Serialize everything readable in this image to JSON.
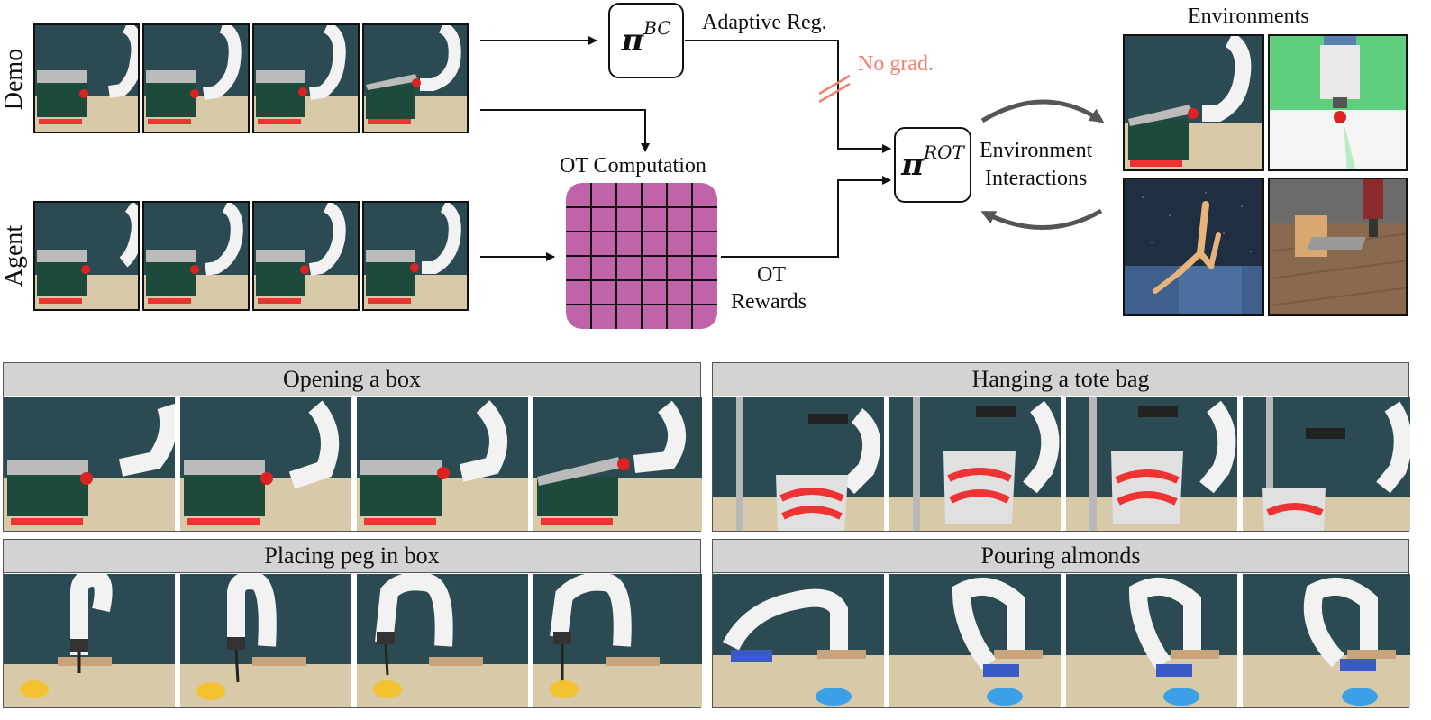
{
  "figure": {
    "demo_label": "Demo",
    "agent_label": "Agent",
    "policy_bc": {
      "symbol": "π",
      "superscript": "BC"
    },
    "policy_rot": {
      "symbol": "π",
      "superscript": "ROT"
    },
    "adaptive_reg": "Adaptive Reg.",
    "no_grad": "No grad.",
    "ot_computation": "OT Computation",
    "ot_rewards_line1": "OT",
    "ot_rewards_line2": "Rewards",
    "env_interactions_line1": "Environment",
    "env_interactions_line2": "Interactions",
    "environments_title": "Environments"
  },
  "tasks": [
    {
      "title": "Opening a box"
    },
    {
      "title": "Hanging a tote bag"
    },
    {
      "title": "Placing peg in box"
    },
    {
      "title": "Pouring almonds"
    }
  ],
  "colors": {
    "ot_matrix": "#c063a8",
    "no_grad": "#f08070",
    "arrow": "#555555",
    "title_bar": "#d3d3d3",
    "wall": "#2c4a52",
    "table": "#d8c9a8"
  }
}
